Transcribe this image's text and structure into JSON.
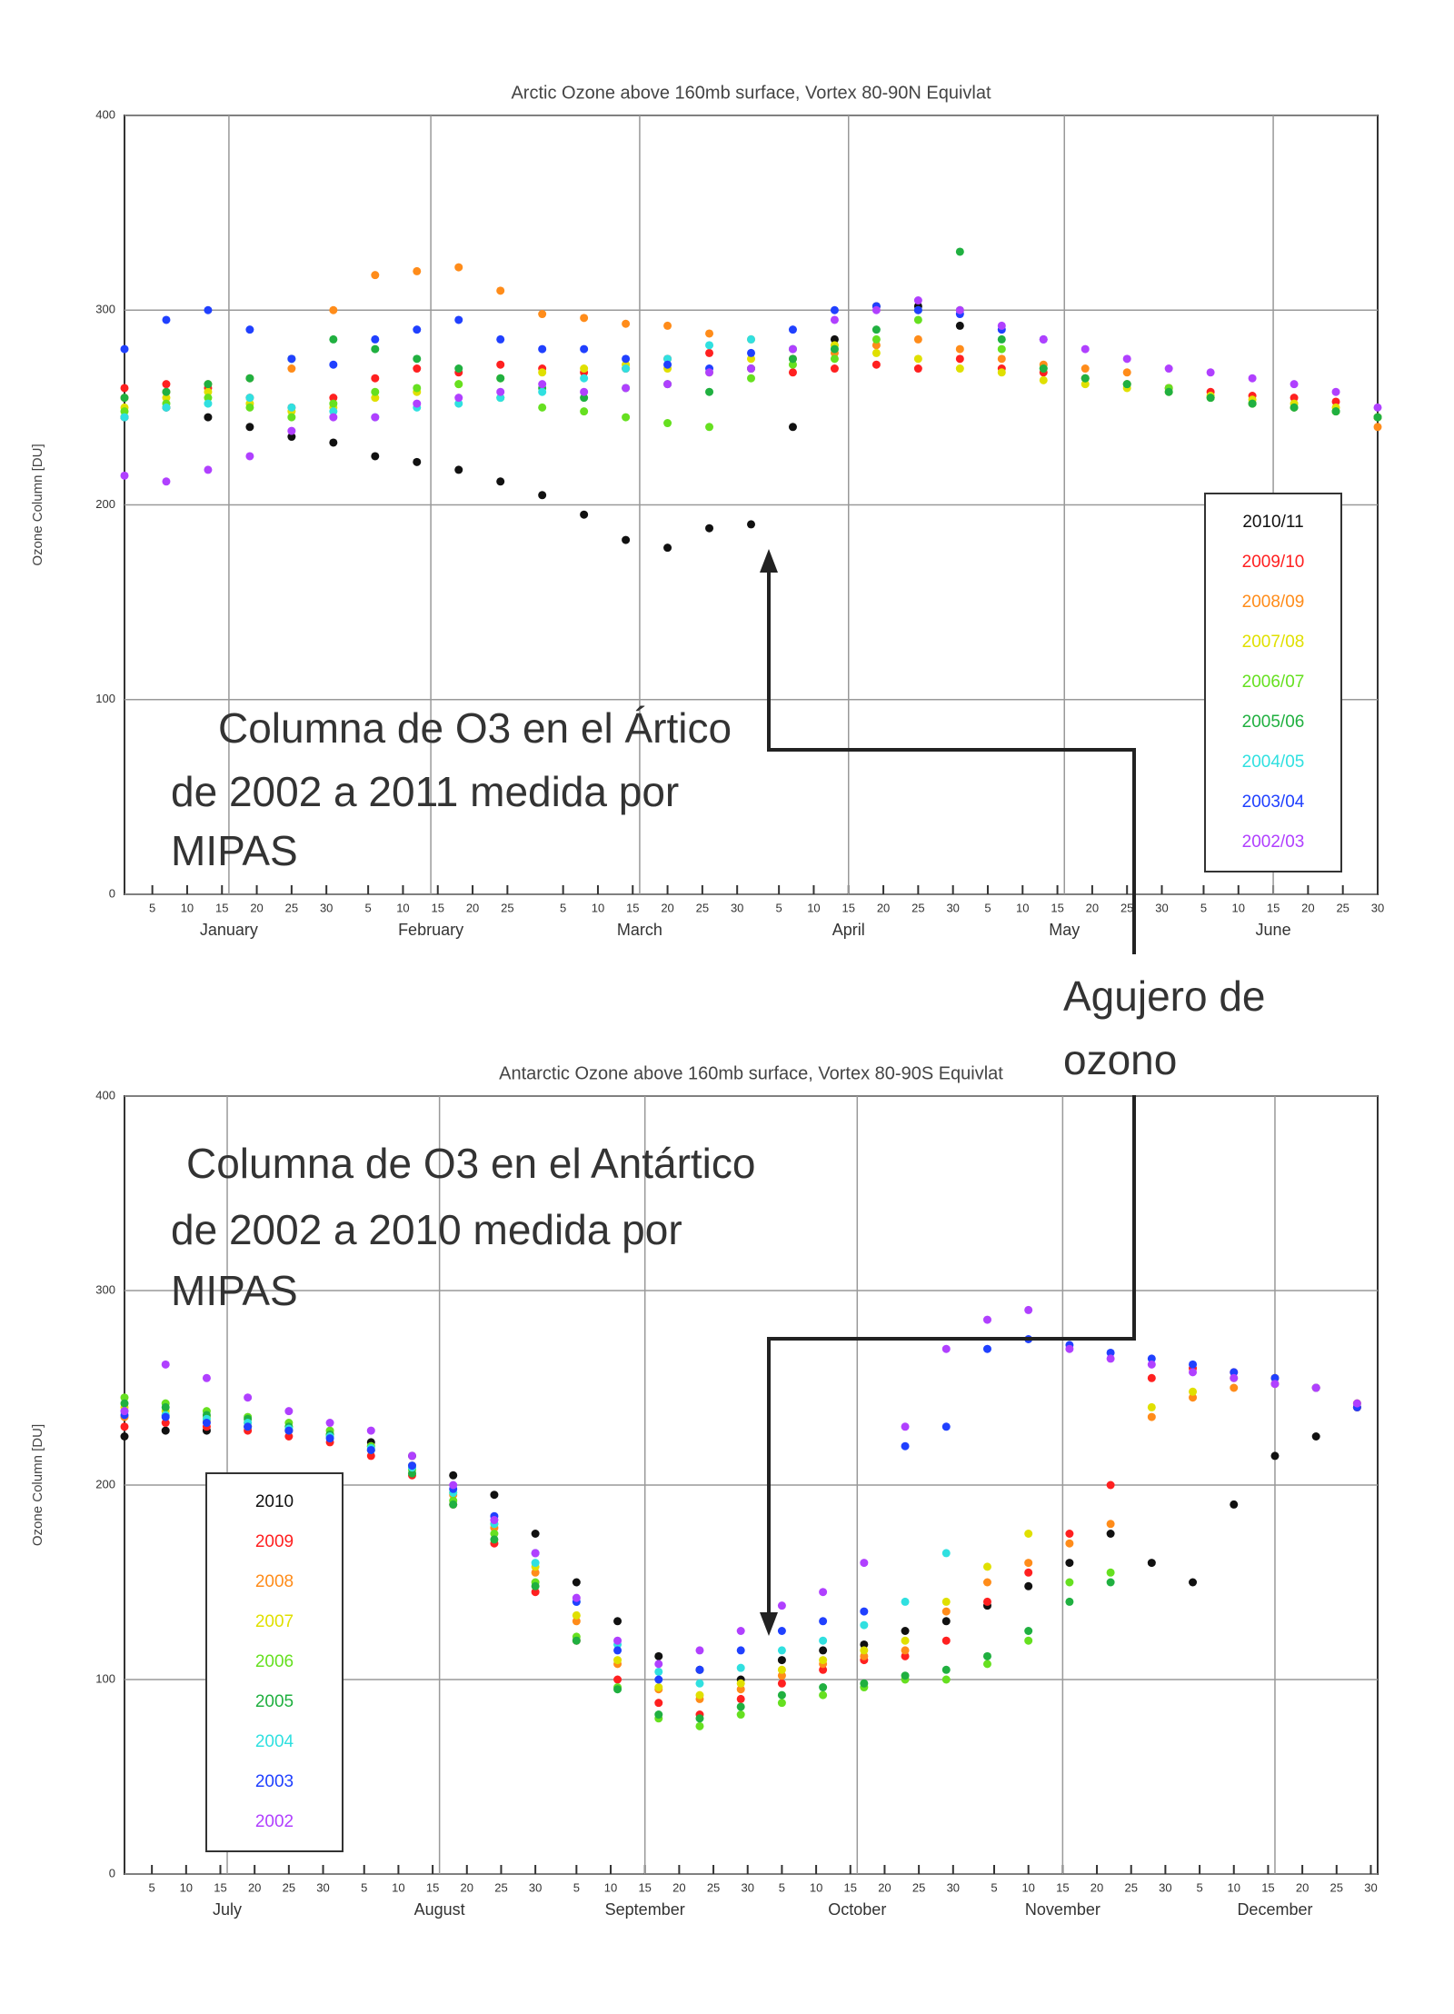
{
  "chart_data": [
    {
      "type": "scatter",
      "title": "Arctic Ozone above 160mb surface, Vortex 80-90N Equivlat",
      "ylabel": "Ozone Column [DU]",
      "xlim": [
        1,
        181
      ],
      "ylim": [
        0,
        400
      ],
      "yticks": [
        0,
        100,
        200,
        300,
        400
      ],
      "grid": true,
      "legend": "lower right",
      "xticks": [
        5,
        10,
        15,
        20,
        25,
        30,
        {
          "value": 36,
          "label": "5"
        },
        {
          "value": 41,
          "label": "10"
        },
        {
          "value": 46,
          "label": "15"
        },
        {
          "value": 51,
          "label": "20"
        },
        {
          "value": 56,
          "label": "25"
        },
        {
          "value": 64,
          "label": "5"
        },
        {
          "value": 69,
          "label": "10"
        },
        {
          "value": 74,
          "label": "15"
        },
        {
          "value": 79,
          "label": "20"
        },
        {
          "value": 84,
          "label": "25"
        },
        {
          "value": 89,
          "label": "30"
        },
        {
          "value": 95,
          "label": "5"
        },
        {
          "value": 100,
          "label": "10"
        },
        {
          "value": 105,
          "label": "15"
        },
        {
          "value": 110,
          "label": "20"
        },
        {
          "value": 115,
          "label": "25"
        },
        {
          "value": 120,
          "label": "30"
        },
        {
          "value": 125,
          "label": "5"
        },
        {
          "value": 130,
          "label": "10"
        },
        {
          "value": 135,
          "label": "15"
        },
        {
          "value": 140,
          "label": "20"
        },
        {
          "value": 145,
          "label": "25"
        },
        {
          "value": 150,
          "label": "30"
        },
        {
          "value": 156,
          "label": "5"
        },
        {
          "value": 161,
          "label": "10"
        },
        {
          "value": 166,
          "label": "15"
        },
        {
          "value": 171,
          "label": "20"
        },
        {
          "value": 176,
          "label": "25"
        },
        {
          "value": 181,
          "label": "30"
        }
      ],
      "month_ticks": [
        {
          "value": 16,
          "label": "January"
        },
        {
          "value": 45,
          "label": "February"
        },
        {
          "value": 75,
          "label": "March"
        },
        {
          "value": 105,
          "label": "April"
        },
        {
          "value": 136,
          "label": "May"
        },
        {
          "value": 166,
          "label": "June"
        }
      ],
      "x": [
        1,
        7,
        13,
        19,
        25,
        31,
        37,
        43,
        49,
        55,
        61,
        67,
        73,
        79,
        85,
        91,
        97,
        103,
        109,
        115,
        121,
        127,
        133,
        139,
        145,
        151,
        157,
        163,
        169,
        175,
        181
      ],
      "series": [
        {
          "name": "2010/11",
          "color": "#111111",
          "values": [
            245,
            250,
            245,
            240,
            235,
            232,
            225,
            222,
            218,
            212,
            205,
            195,
            182,
            178,
            188,
            190,
            240,
            285,
            302,
            302,
            292,
            null,
            null,
            null,
            null,
            null,
            null,
            null,
            null,
            null,
            null
          ]
        },
        {
          "name": "2009/10",
          "color": "#ff2020",
          "values": [
            260,
            262,
            260,
            255,
            250,
            255,
            265,
            270,
            268,
            272,
            270,
            268,
            270,
            275,
            278,
            270,
            268,
            270,
            272,
            270,
            275,
            270,
            268,
            265,
            262,
            260,
            258,
            256,
            255,
            253,
            245
          ]
        },
        {
          "name": "2008/09",
          "color": "#ff8c1a",
          "values": [
            255,
            258,
            262,
            265,
            270,
            300,
            318,
            320,
            322,
            310,
            298,
            296,
            293,
            292,
            288,
            285,
            275,
            278,
            282,
            285,
            280,
            275,
            272,
            270,
            268,
            260,
            255,
            252,
            250,
            248,
            240
          ]
        },
        {
          "name": "2007/08",
          "color": "#e0e000",
          "values": [
            250,
            255,
            258,
            252,
            248,
            250,
            255,
            258,
            262,
            265,
            268,
            270,
            272,
            270,
            268,
            275,
            280,
            282,
            278,
            275,
            270,
            268,
            264,
            262,
            260,
            258,
            256,
            254,
            252,
            250,
            245
          ]
        },
        {
          "name": "2006/07",
          "color": "#66e020",
          "values": [
            248,
            252,
            255,
            250,
            245,
            252,
            258,
            260,
            262,
            255,
            250,
            248,
            245,
            242,
            240,
            265,
            272,
            275,
            285,
            295,
            300,
            280,
            270,
            265,
            262,
            260,
            255,
            252,
            250,
            248,
            245
          ]
        },
        {
          "name": "2005/06",
          "color": "#20b040",
          "values": [
            255,
            258,
            262,
            265,
            275,
            285,
            280,
            275,
            270,
            265,
            260,
            255,
            260,
            262,
            258,
            270,
            275,
            280,
            290,
            300,
            330,
            285,
            270,
            265,
            262,
            258,
            255,
            252,
            250,
            248,
            245
          ]
        },
        {
          "name": "2004/05",
          "color": "#30e0e0",
          "values": [
            245,
            250,
            252,
            255,
            250,
            248,
            245,
            250,
            252,
            255,
            258,
            265,
            270,
            275,
            282,
            285,
            280,
            null,
            null,
            null,
            null,
            null,
            null,
            null,
            null,
            null,
            null,
            null,
            null,
            null,
            null
          ]
        },
        {
          "name": "2003/04",
          "color": "#2040ff",
          "values": [
            280,
            295,
            300,
            290,
            275,
            272,
            285,
            290,
            295,
            285,
            280,
            280,
            275,
            272,
            270,
            278,
            290,
            300,
            302,
            300,
            298,
            290,
            285,
            null,
            null,
            null,
            null,
            null,
            null,
            null,
            null
          ]
        },
        {
          "name": "2002/03",
          "color": "#b040ff",
          "values": [
            215,
            212,
            218,
            225,
            238,
            245,
            245,
            252,
            255,
            258,
            262,
            258,
            260,
            262,
            268,
            270,
            280,
            295,
            300,
            305,
            300,
            292,
            285,
            280,
            275,
            270,
            268,
            265,
            262,
            258,
            250
          ]
        }
      ]
    },
    {
      "type": "scatter",
      "title": "Antarctic Ozone above 160mb surface, Vortex 80-90S Equivlat",
      "ylabel": "Ozone Column [DU]",
      "xlim": [
        1,
        184
      ],
      "ylim": [
        0,
        400
      ],
      "yticks": [
        0,
        100,
        200,
        300,
        400
      ],
      "grid": true,
      "legend": "lower left",
      "xticks": [
        5,
        10,
        15,
        20,
        25,
        30,
        {
          "value": 36,
          "label": "5"
        },
        {
          "value": 41,
          "label": "10"
        },
        {
          "value": 46,
          "label": "15"
        },
        {
          "value": 51,
          "label": "20"
        },
        {
          "value": 56,
          "label": "25"
        },
        {
          "value": 61,
          "label": "30"
        },
        {
          "value": 67,
          "label": "5"
        },
        {
          "value": 72,
          "label": "10"
        },
        {
          "value": 77,
          "label": "15"
        },
        {
          "value": 82,
          "label": "20"
        },
        {
          "value": 87,
          "label": "25"
        },
        {
          "value": 92,
          "label": "30"
        },
        {
          "value": 97,
          "label": "5"
        },
        {
          "value": 102,
          "label": "10"
        },
        {
          "value": 107,
          "label": "15"
        },
        {
          "value": 112,
          "label": "20"
        },
        {
          "value": 117,
          "label": "25"
        },
        {
          "value": 122,
          "label": "30"
        },
        {
          "value": 128,
          "label": "5"
        },
        {
          "value": 133,
          "label": "10"
        },
        {
          "value": 138,
          "label": "15"
        },
        {
          "value": 143,
          "label": "20"
        },
        {
          "value": 148,
          "label": "25"
        },
        {
          "value": 153,
          "label": "30"
        },
        {
          "value": 158,
          "label": "5"
        },
        {
          "value": 163,
          "label": "10"
        },
        {
          "value": 168,
          "label": "15"
        },
        {
          "value": 173,
          "label": "20"
        },
        {
          "value": 178,
          "label": "25"
        },
        {
          "value": 183,
          "label": "30"
        }
      ],
      "month_ticks": [
        {
          "value": 16,
          "label": "July"
        },
        {
          "value": 47,
          "label": "August"
        },
        {
          "value": 77,
          "label": "September"
        },
        {
          "value": 108,
          "label": "October"
        },
        {
          "value": 138,
          "label": "November"
        },
        {
          "value": 169,
          "label": "December"
        }
      ],
      "x": [
        1,
        7,
        13,
        19,
        25,
        31,
        37,
        43,
        49,
        55,
        61,
        67,
        73,
        79,
        85,
        91,
        97,
        103,
        109,
        115,
        121,
        127,
        133,
        139,
        145,
        151,
        157,
        163,
        169,
        175,
        181
      ],
      "series": [
        {
          "name": "2010",
          "color": "#111111",
          "values": [
            225,
            228,
            228,
            230,
            228,
            226,
            222,
            215,
            205,
            195,
            175,
            150,
            130,
            112,
            105,
            100,
            110,
            115,
            118,
            125,
            130,
            138,
            148,
            160,
            175,
            160,
            150,
            190,
            215,
            225,
            240
          ]
        },
        {
          "name": "2009",
          "color": "#ff2020",
          "values": [
            230,
            232,
            230,
            228,
            225,
            222,
            215,
            205,
            190,
            170,
            145,
            120,
            100,
            88,
            82,
            90,
            98,
            105,
            110,
            112,
            120,
            140,
            155,
            175,
            200,
            255,
            260,
            258,
            255,
            250,
            240
          ]
        },
        {
          "name": "2008",
          "color": "#ff8c1a",
          "values": [
            235,
            236,
            233,
            230,
            228,
            225,
            218,
            208,
            195,
            178,
            155,
            130,
            108,
            95,
            90,
            95,
            102,
            108,
            112,
            115,
            135,
            150,
            160,
            170,
            180,
            235,
            245,
            250,
            252,
            250,
            242
          ]
        },
        {
          "name": "2007",
          "color": "#e0e000",
          "values": [
            240,
            238,
            235,
            232,
            230,
            226,
            220,
            210,
            196,
            180,
            158,
            133,
            110,
            96,
            92,
            98,
            105,
            110,
            115,
            120,
            140,
            158,
            175,
            null,
            null,
            240,
            248,
            255,
            255,
            250,
            242
          ]
        },
        {
          "name": "2006",
          "color": "#66e020",
          "values": [
            245,
            242,
            238,
            235,
            232,
            228,
            220,
            208,
            192,
            175,
            150,
            122,
            96,
            80,
            76,
            82,
            88,
            92,
            96,
            100,
            100,
            108,
            120,
            150,
            155,
            null,
            null,
            null,
            null,
            null,
            null
          ]
        },
        {
          "name": "2005",
          "color": "#20b040",
          "values": [
            242,
            240,
            236,
            234,
            230,
            226,
            218,
            206,
            190,
            172,
            148,
            120,
            95,
            82,
            80,
            86,
            92,
            96,
            98,
            102,
            105,
            112,
            125,
            140,
            150,
            null,
            null,
            null,
            null,
            null,
            null
          ]
        },
        {
          "name": "2004",
          "color": "#30e0e0",
          "values": [
            238,
            236,
            234,
            232,
            229,
            225,
            219,
            209,
            196,
            180,
            160,
            140,
            118,
            104,
            98,
            106,
            115,
            120,
            128,
            140,
            165,
            null,
            null,
            null,
            null,
            null,
            null,
            null,
            null,
            null,
            null
          ]
        },
        {
          "name": "2003",
          "color": "#2040ff",
          "values": [
            236,
            235,
            232,
            230,
            228,
            224,
            218,
            210,
            198,
            184,
            165,
            140,
            115,
            100,
            105,
            115,
            125,
            130,
            135,
            220,
            230,
            270,
            275,
            272,
            268,
            265,
            262,
            258,
            255,
            250,
            240
          ]
        },
        {
          "name": "2002",
          "color": "#b040ff",
          "values": [
            238,
            262,
            255,
            245,
            238,
            232,
            228,
            215,
            200,
            182,
            165,
            142,
            120,
            108,
            115,
            125,
            138,
            145,
            160,
            230,
            270,
            285,
            290,
            270,
            265,
            262,
            258,
            255,
            252,
            250,
            242
          ]
        }
      ]
    }
  ],
  "annotations": [
    {
      "lines": [
        "Columna de O3 en el Ártico",
        "de 2002 a 2011 medida por",
        "MIPAS"
      ]
    },
    {
      "lines": [
        "Agujero de",
        "ozono"
      ]
    },
    {
      "lines": [
        "Columna de O3 en el Antártico",
        "de 2002 a 2010 medida por",
        "MIPAS"
      ]
    }
  ]
}
